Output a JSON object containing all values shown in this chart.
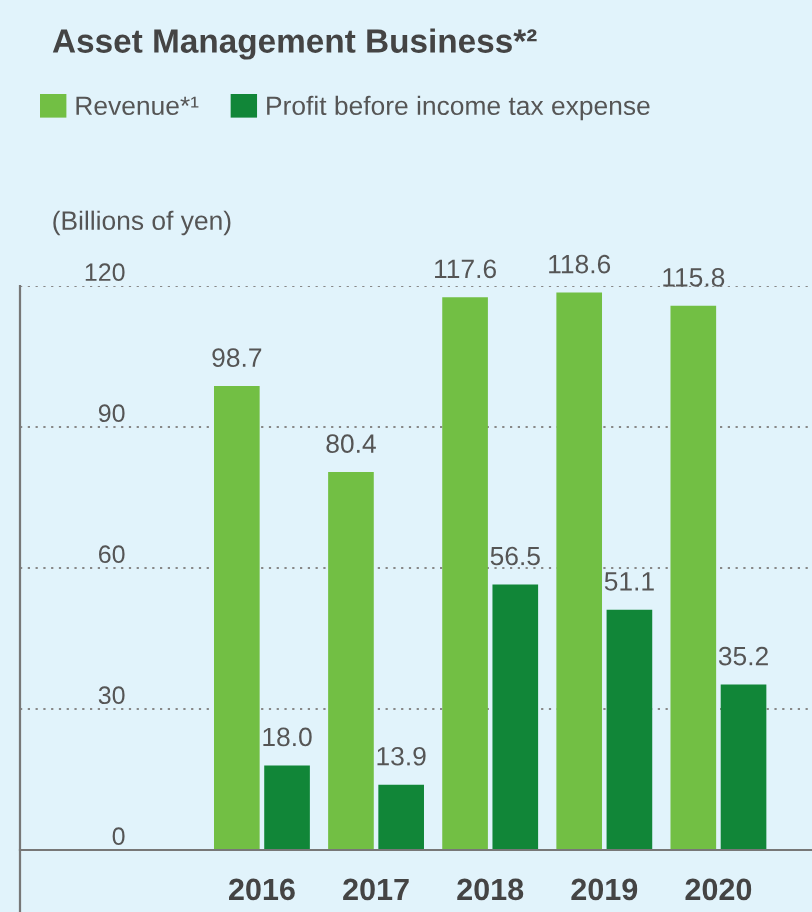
{
  "chart_data": {
    "type": "bar",
    "title": "Asset Management Business*²",
    "ylabel": "(Billions of yen)",
    "categories": [
      "2016",
      "2017",
      "2018",
      "2019",
      "2020"
    ],
    "series": [
      {
        "name": "Revenue*¹",
        "color": "#72bf44",
        "values": [
          98.7,
          80.4,
          117.6,
          118.6,
          115.8
        ],
        "value_labels": [
          "98.7",
          "80.4",
          "117.6",
          "118.6",
          "115.8"
        ]
      },
      {
        "name": "Profit before income tax expense",
        "color": "#118638",
        "values": [
          18.0,
          13.9,
          56.5,
          51.1,
          35.2
        ],
        "value_labels": [
          "18.0",
          "13.9",
          "56.5",
          "51.1",
          "35.2"
        ]
      }
    ],
    "ylim": [
      0,
      120
    ],
    "yticks": [
      0,
      30,
      60,
      90,
      120
    ],
    "grid": "y",
    "legend": "top left"
  }
}
